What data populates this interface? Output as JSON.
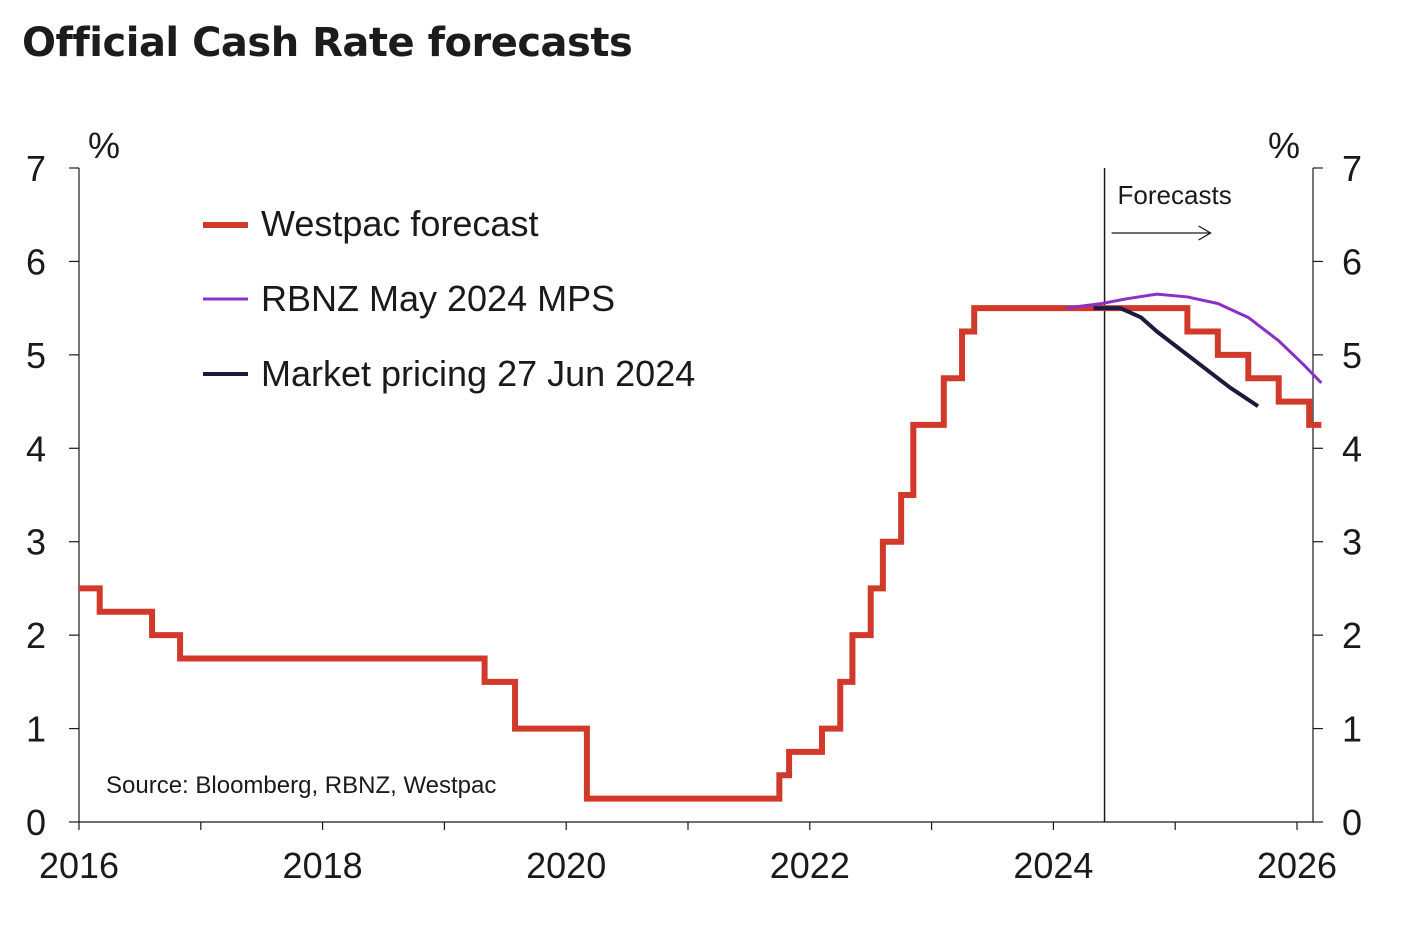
{
  "chart_data": {
    "type": "line",
    "title": "Official Cash Rate forecasts",
    "ylabel_left": "%",
    "ylabel_right": "%",
    "source": "Source: Bloomberg, RBNZ, Westpac",
    "annotation": "Forecasts",
    "forecast_start": 2024.42,
    "xlim": [
      2016.0,
      2026.2
    ],
    "ylim": [
      0,
      7
    ],
    "x_ticks": [
      2016,
      2018,
      2020,
      2022,
      2024,
      2026
    ],
    "x_tick_labels": [
      "2016",
      "2018",
      "2020",
      "2022",
      "2024",
      "2026"
    ],
    "x_minor_ticks": [
      2017,
      2019,
      2021,
      2023,
      2025
    ],
    "y_ticks": [
      0,
      1,
      2,
      3,
      4,
      5,
      6,
      7
    ],
    "y_tick_labels": [
      "0",
      "1",
      "2",
      "3",
      "4",
      "5",
      "6",
      "7"
    ],
    "grid": false,
    "legend_position": "top-left",
    "series": [
      {
        "name": "Westpac forecast",
        "color": "#d13a2a",
        "step": true,
        "points": [
          [
            2016.0,
            2.5
          ],
          [
            2016.17,
            2.25
          ],
          [
            2016.6,
            2.0
          ],
          [
            2016.83,
            1.75
          ],
          [
            2019.33,
            1.5
          ],
          [
            2019.58,
            1.0
          ],
          [
            2020.17,
            0.25
          ],
          [
            2021.75,
            0.5
          ],
          [
            2021.83,
            0.75
          ],
          [
            2022.1,
            1.0
          ],
          [
            2022.25,
            1.5
          ],
          [
            2022.35,
            2.0
          ],
          [
            2022.5,
            2.5
          ],
          [
            2022.6,
            3.0
          ],
          [
            2022.75,
            3.5
          ],
          [
            2022.85,
            4.25
          ],
          [
            2023.1,
            4.75
          ],
          [
            2023.25,
            5.25
          ],
          [
            2023.35,
            5.5
          ],
          [
            2025.1,
            5.25
          ],
          [
            2025.35,
            5.0
          ],
          [
            2025.6,
            4.75
          ],
          [
            2025.85,
            4.5
          ],
          [
            2026.1,
            4.25
          ],
          [
            2026.2,
            4.25
          ]
        ]
      },
      {
        "name": "RBNZ May 2024 MPS",
        "color": "#8b2fc9",
        "step": false,
        "points": [
          [
            2024.1,
            5.5
          ],
          [
            2024.4,
            5.55
          ],
          [
            2024.6,
            5.6
          ],
          [
            2024.85,
            5.65
          ],
          [
            2025.1,
            5.62
          ],
          [
            2025.35,
            5.55
          ],
          [
            2025.6,
            5.4
          ],
          [
            2025.85,
            5.15
          ],
          [
            2026.05,
            4.9
          ],
          [
            2026.2,
            4.7
          ]
        ]
      },
      {
        "name": "Market pricing 27 Jun 2024",
        "color": "#1b1a3f",
        "step": false,
        "points": [
          [
            2024.33,
            5.5
          ],
          [
            2024.55,
            5.5
          ],
          [
            2024.72,
            5.4
          ],
          [
            2024.85,
            5.25
          ],
          [
            2025.1,
            5.0
          ],
          [
            2025.3,
            4.8
          ],
          [
            2025.45,
            4.65
          ],
          [
            2025.6,
            4.52
          ],
          [
            2025.68,
            4.45
          ]
        ]
      }
    ]
  }
}
